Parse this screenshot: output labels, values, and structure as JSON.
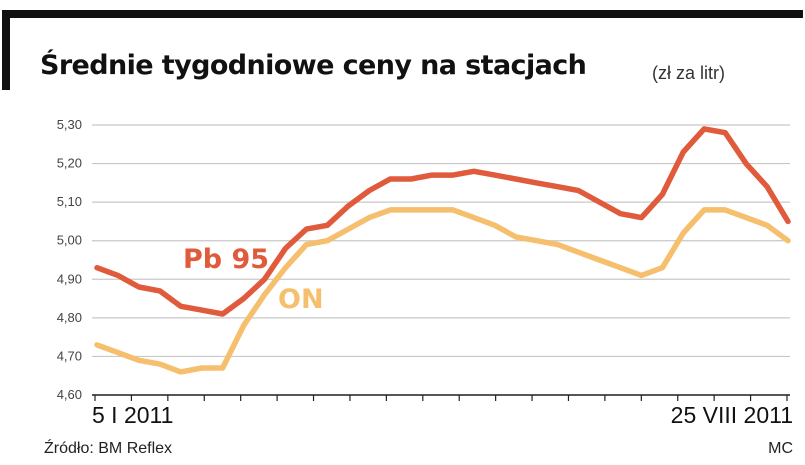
{
  "header": {
    "title": "Średnie tygodniowe ceny na stacjach",
    "unit": "(zł za litr)"
  },
  "footer": {
    "source": "Źródło: BM Reflex",
    "author": "MC"
  },
  "colors": {
    "pb95": "#e05a3c",
    "on": "#f5bf6e",
    "grid": "#c8c8c8",
    "frame": "#111111"
  },
  "chart_data": {
    "type": "line",
    "title": "Średnie tygodniowe ceny na stacjach",
    "subtitle": "(zł za litr)",
    "xlabel": "",
    "ylabel": "",
    "x_start_label": "5 I 2011",
    "x_end_label": "25 VIII 2011",
    "y_tick_labels": [
      "5,30",
      "5,20",
      "5,10",
      "5,00",
      "4,90",
      "4,80",
      "4,70",
      "4,60"
    ],
    "y_ticks": [
      5.3,
      5.2,
      5.1,
      5.0,
      4.9,
      4.8,
      4.7,
      4.6
    ],
    "ylim": [
      4.6,
      5.3
    ],
    "grid": true,
    "series": [
      {
        "name": "Pb 95",
        "values": [
          4.93,
          4.91,
          4.88,
          4.87,
          4.83,
          4.82,
          4.81,
          4.85,
          4.9,
          4.98,
          5.03,
          5.04,
          5.09,
          5.13,
          5.16,
          5.16,
          5.17,
          5.17,
          5.18,
          5.17,
          5.16,
          5.15,
          5.14,
          5.13,
          5.1,
          5.07,
          5.06,
          5.12,
          5.23,
          5.29,
          5.28,
          5.2,
          5.14,
          5.05
        ]
      },
      {
        "name": "ON",
        "values": [
          4.73,
          4.71,
          4.69,
          4.68,
          4.66,
          4.67,
          4.67,
          4.78,
          4.86,
          4.93,
          4.99,
          5.0,
          5.03,
          5.06,
          5.08,
          5.08,
          5.08,
          5.08,
          5.06,
          5.04,
          5.01,
          5.0,
          4.99,
          4.97,
          4.95,
          4.93,
          4.91,
          4.93,
          5.02,
          5.08,
          5.08,
          5.06,
          5.04,
          5.0
        ]
      }
    ]
  }
}
